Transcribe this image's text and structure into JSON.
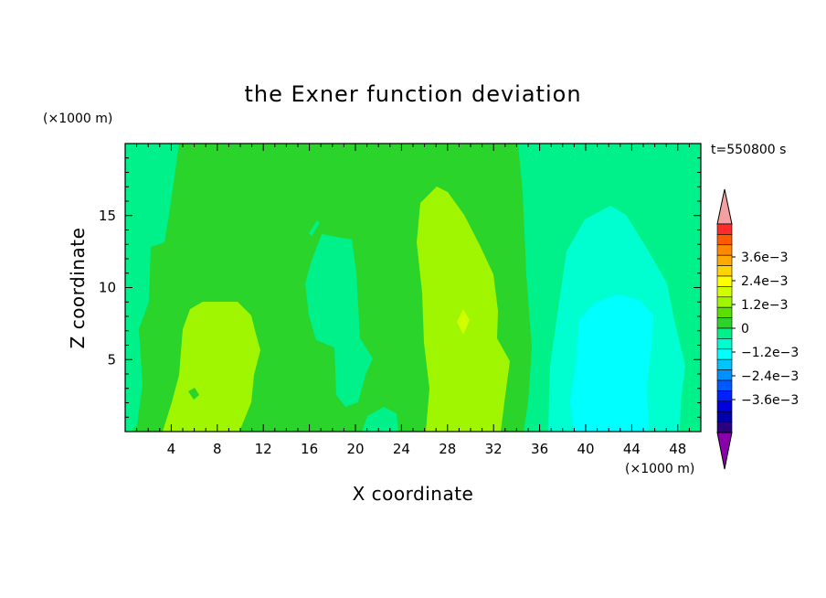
{
  "chart_data": {
    "type": "heatmap",
    "title": "the Exner function deviation",
    "xlabel": "X coordinate",
    "ylabel": "Z coordinate",
    "x_unit": "(×1000 m)",
    "y_unit": "(×1000 m)",
    "time_label": "t=550800 s",
    "xlim": [
      0,
      50
    ],
    "ylim": [
      0,
      20
    ],
    "x_ticks": [
      4,
      8,
      12,
      16,
      20,
      24,
      28,
      32,
      36,
      40,
      44,
      48
    ],
    "y_ticks": [
      5,
      10,
      15
    ],
    "colorbar": {
      "tick_labels": [
        "3.6e-3",
        "2.4e-3",
        "1.2e-3",
        "0",
        "-1.2e-3",
        "-2.4e-3",
        "-3.6e-3"
      ],
      "tick_values": [
        0.0036,
        0.0024,
        0.0012,
        0,
        -0.0012,
        -0.0024,
        -0.0036
      ],
      "colors_top_to_bottom": [
        "#ff2a2a",
        "#ff5a00",
        "#ff8a00",
        "#ffaa00",
        "#ffd400",
        "#ffff00",
        "#d0ff00",
        "#a0f500",
        "#5ae000",
        "#2ad42a",
        "#00f08a",
        "#00ffd0",
        "#00ffff",
        "#00c4ff",
        "#0090ff",
        "#0058ff",
        "#0020ff",
        "#0000dd",
        "#0000aa",
        "#2a0080"
      ],
      "over_color": "#f4a0a0",
      "under_color": "#8a00aa"
    },
    "regions": [
      {
        "level": "0 to 3e-4",
        "color": "#2ad42a",
        "desc": "background field"
      },
      {
        "level": "-3e-4 to 0",
        "color": "#00f08a",
        "desc": "left edge x 0-5, full height"
      },
      {
        "level": "-3e-4 to 0",
        "color": "#00f08a",
        "desc": "column x 16-21, z 2-13"
      },
      {
        "level": "-3e-4 to 0",
        "color": "#00f08a",
        "desc": "right block x 34-50, full height"
      },
      {
        "level": "-6e-4 to -3e-4",
        "color": "#00ffd0",
        "desc": "x 37-49, z 0-15.5"
      },
      {
        "level": "-9e-4 to -6e-4",
        "color": "#00ffff",
        "desc": "x 39-46, z 0-9.5"
      },
      {
        "level": "3e-4 to 6e-4",
        "color": "#a0f500",
        "desc": "x 5-11, z 0-9"
      },
      {
        "level": "3e-4 to 6e-4",
        "color": "#a0f500",
        "desc": "x 26-33, z 0-17"
      },
      {
        "level": "6e-4 to 9e-4",
        "color": "#d0ff00",
        "desc": "small spot x 29.5, z 7.5"
      }
    ]
  }
}
